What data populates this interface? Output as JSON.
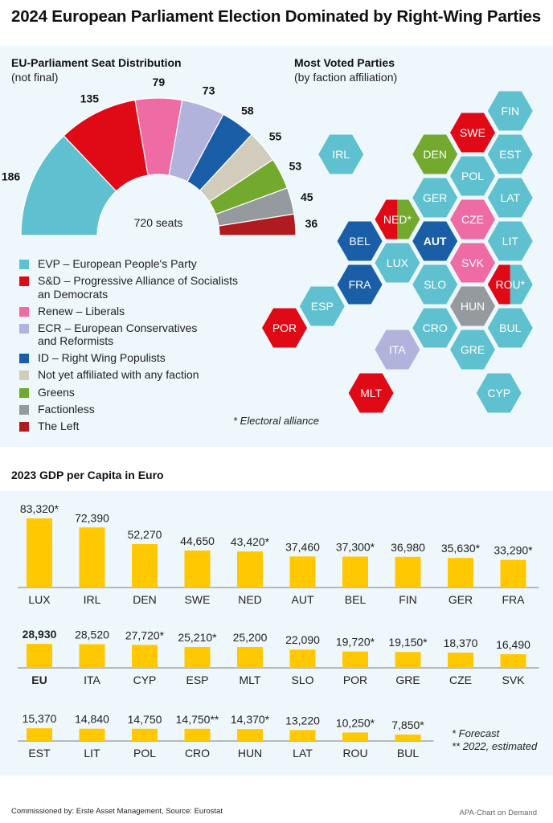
{
  "title": "2024 European Parliament Election Dominated by Right-Wing Parties",
  "seat_section": {
    "heading": "EU-Parliament Seat Distribution",
    "note": "(not final)",
    "center_label": "720 seats"
  },
  "map_section": {
    "heading": "Most Voted Parties",
    "note": "(by faction affiliation)",
    "footnote": "* Electoral alliance"
  },
  "gdp_section": {
    "heading": "2023 GDP per Capita in Euro",
    "footnote_1": "* Forecast",
    "footnote_2": "** 2022, estimated"
  },
  "footer": {
    "left": "Commissioned by: Erste Asset Management, Source: Eurostat",
    "right": "APA-Chart on Demand"
  },
  "colors": {
    "EVP": "#5fc1cf",
    "SD": "#e00a17",
    "Renew": "#ee6ba4",
    "ECR": "#b1b3dc",
    "ID": "#1a5ea8",
    "NA": "#d1ccbc",
    "Greens": "#73a92f",
    "Factionless": "#959a9e",
    "Left": "#b01b1f",
    "bar": "#ffc800",
    "panel": "#eef7fc"
  },
  "chart_data": [
    {
      "type": "pie",
      "subtype": "half-donut (parliament)",
      "title": "EU-Parliament Seat Distribution",
      "subtitle": "(not final)",
      "total_label": "720 seats",
      "total": 720,
      "slices": [
        {
          "key": "EVP",
          "label": "EVP – European People's Party",
          "value": 186
        },
        {
          "key": "SD",
          "label": "S&D – Progressive Alliance of Socialists an Democrats",
          "value": 135
        },
        {
          "key": "Renew",
          "label": "Renew – Liberals",
          "value": 79
        },
        {
          "key": "ECR",
          "label": "ECR – European Conservatives and Reformists",
          "value": 73
        },
        {
          "key": "ID",
          "label": "ID – Right Wing Populists",
          "value": 58
        },
        {
          "key": "NA",
          "label": "Not yet affiliated with any faction",
          "value": 55
        },
        {
          "key": "Greens",
          "label": "Greens",
          "value": 53
        },
        {
          "key": "Factionless",
          "label": "Factionless",
          "value": 45
        },
        {
          "key": "Left",
          "label": "The Left",
          "value": 36
        }
      ],
      "legend": [
        {
          "key": "EVP",
          "lines": [
            "EVP – European People's Party"
          ]
        },
        {
          "key": "SD",
          "lines": [
            "S&D – Progressive Alliance of Socialists",
            "an Democrats"
          ]
        },
        {
          "key": "Renew",
          "lines": [
            "Renew – Liberals"
          ]
        },
        {
          "key": "ECR",
          "lines": [
            "ECR – European Conservatives",
            "and Reformists"
          ]
        },
        {
          "key": "ID",
          "lines": [
            "ID – Right Wing Populists"
          ]
        },
        {
          "key": "NA",
          "lines": [
            "Not yet affiliated with any faction"
          ]
        },
        {
          "key": "Greens",
          "lines": [
            "Greens"
          ]
        },
        {
          "key": "Factionless",
          "lines": [
            "Factionless"
          ]
        },
        {
          "key": "Left",
          "lines": [
            "The Left"
          ]
        }
      ],
      "legend_position": "bottom-left"
    },
    {
      "type": "heatmap",
      "subtype": "hex tile map",
      "title": "Most Voted Parties",
      "subtitle": "(by faction affiliation)",
      "tiles": [
        {
          "code": "FIN",
          "col": 6,
          "row": 0,
          "factions": [
            "EVP"
          ]
        },
        {
          "code": "SWE",
          "col": 5,
          "row": 1,
          "factions": [
            "SD"
          ]
        },
        {
          "code": "EST",
          "col": 6,
          "row": 2,
          "factions": [
            "EVP"
          ]
        },
        {
          "code": "DEN",
          "col": 4,
          "row": 2,
          "factions": [
            "Greens"
          ]
        },
        {
          "code": "IRL",
          "col": 1.5,
          "row": 2,
          "factions": [
            "EVP"
          ]
        },
        {
          "code": "POL",
          "col": 5,
          "row": 3,
          "factions": [
            "EVP"
          ]
        },
        {
          "code": "GER",
          "col": 4,
          "row": 4,
          "factions": [
            "EVP"
          ]
        },
        {
          "code": "LAT",
          "col": 6,
          "row": 4,
          "factions": [
            "EVP"
          ]
        },
        {
          "code": "NED*",
          "col": 3,
          "row": 5,
          "factions": [
            "SD",
            "Greens"
          ]
        },
        {
          "code": "CZE",
          "col": 5,
          "row": 5,
          "factions": [
            "Renew"
          ]
        },
        {
          "code": "BEL",
          "col": 2,
          "row": 6,
          "factions": [
            "ID"
          ]
        },
        {
          "code": "AUT",
          "col": 4,
          "row": 6,
          "factions": [
            "ID"
          ],
          "bold": true
        },
        {
          "code": "LIT",
          "col": 6,
          "row": 6,
          "factions": [
            "EVP"
          ]
        },
        {
          "code": "LUX",
          "col": 3,
          "row": 7,
          "factions": [
            "EVP"
          ]
        },
        {
          "code": "SVK",
          "col": 5,
          "row": 7,
          "factions": [
            "Renew"
          ]
        },
        {
          "code": "FRA",
          "col": 2,
          "row": 8,
          "factions": [
            "ID"
          ]
        },
        {
          "code": "SLO",
          "col": 4,
          "row": 8,
          "factions": [
            "EVP"
          ]
        },
        {
          "code": "ROU*",
          "col": 6,
          "row": 8,
          "factions": [
            "SD",
            "EVP"
          ]
        },
        {
          "code": "ESP",
          "col": 1,
          "row": 9,
          "factions": [
            "EVP"
          ]
        },
        {
          "code": "HUN",
          "col": 5,
          "row": 9,
          "factions": [
            "Factionless"
          ]
        },
        {
          "code": "POR",
          "col": 0,
          "row": 10,
          "factions": [
            "SD"
          ]
        },
        {
          "code": "CRO",
          "col": 4,
          "row": 10,
          "factions": [
            "EVP"
          ]
        },
        {
          "code": "BUL",
          "col": 6,
          "row": 10,
          "factions": [
            "EVP"
          ]
        },
        {
          "code": "ITA",
          "col": 3,
          "row": 11,
          "factions": [
            "ECR"
          ]
        },
        {
          "code": "GRE",
          "col": 5,
          "row": 11,
          "factions": [
            "EVP"
          ]
        },
        {
          "code": "MLT",
          "col": 2.3,
          "row": 13,
          "factions": [
            "SD"
          ]
        },
        {
          "code": "CYP",
          "col": 5.7,
          "row": 13,
          "factions": [
            "EVP"
          ]
        }
      ],
      "annotation": "* Electoral alliance"
    },
    {
      "type": "bar",
      "title": "2023 GDP per Capita in Euro",
      "xlabel": "",
      "ylabel": "",
      "ylim": [
        0,
        83320
      ],
      "grid": false,
      "unit": "EUR",
      "rows": [
        [
          {
            "category": "LUX",
            "value": 83320,
            "label": "83,320*"
          },
          {
            "category": "IRL",
            "value": 72390,
            "label": "72,390"
          },
          {
            "category": "DEN",
            "value": 52270,
            "label": "52,270"
          },
          {
            "category": "SWE",
            "value": 44650,
            "label": "44,650"
          },
          {
            "category": "NED",
            "value": 43420,
            "label": "43,420*"
          },
          {
            "category": "AUT",
            "value": 37460,
            "label": "37,460"
          },
          {
            "category": "BEL",
            "value": 37300,
            "label": "37,300*"
          },
          {
            "category": "FIN",
            "value": 36980,
            "label": "36,980"
          },
          {
            "category": "GER",
            "value": 35630,
            "label": "35,630*"
          },
          {
            "category": "FRA",
            "value": 33290,
            "label": "33,290*"
          }
        ],
        [
          {
            "category": "EU",
            "value": 28930,
            "label": "28,930",
            "bold": true
          },
          {
            "category": "ITA",
            "value": 28520,
            "label": "28,520"
          },
          {
            "category": "CYP",
            "value": 27720,
            "label": "27,720*"
          },
          {
            "category": "ESP",
            "value": 25210,
            "label": "25,210*"
          },
          {
            "category": "MLT",
            "value": 25200,
            "label": "25,200"
          },
          {
            "category": "SLO",
            "value": 22090,
            "label": "22,090"
          },
          {
            "category": "POR",
            "value": 19720,
            "label": "19,720*"
          },
          {
            "category": "GRE",
            "value": 19150,
            "label": "19,150*"
          },
          {
            "category": "CZE",
            "value": 18370,
            "label": "18,370"
          },
          {
            "category": "SVK",
            "value": 16490,
            "label": "16,490"
          }
        ],
        [
          {
            "category": "EST",
            "value": 15370,
            "label": "15,370"
          },
          {
            "category": "LIT",
            "value": 14840,
            "label": "14,840"
          },
          {
            "category": "POL",
            "value": 14750,
            "label": "14,750"
          },
          {
            "category": "CRO",
            "value": 14750,
            "label": "14,750**"
          },
          {
            "category": "HUN",
            "value": 14370,
            "label": "14,370*"
          },
          {
            "category": "LAT",
            "value": 13220,
            "label": "13,220"
          },
          {
            "category": "ROU",
            "value": 10250,
            "label": "10,250*"
          },
          {
            "category": "BUL",
            "value": 7850,
            "label": "7,850*"
          }
        ]
      ],
      "annotations": [
        "* Forecast",
        "** 2022, estimated"
      ]
    }
  ]
}
